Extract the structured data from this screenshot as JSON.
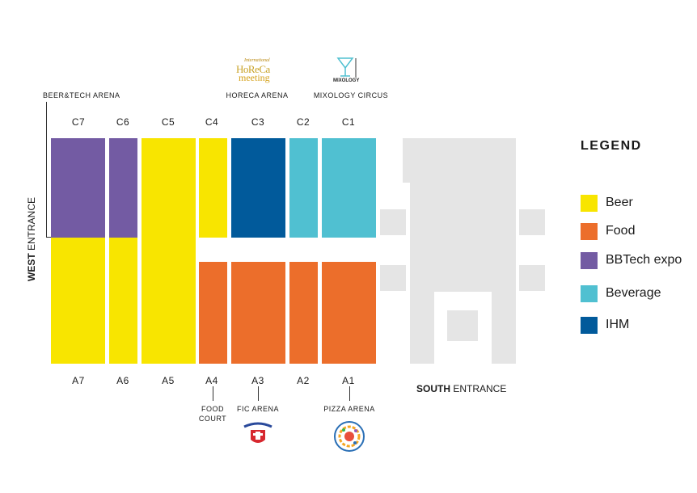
{
  "colors": {
    "beer": "#f8e500",
    "food": "#ec6e2b",
    "bbtech": "#735ba3",
    "beverage": "#50c0d1",
    "ihm": "#015a9b",
    "pavilion_grey": "#e5e5e5"
  },
  "halls_top": [
    "C7",
    "C6",
    "C5",
    "C4",
    "C3",
    "C2",
    "C1"
  ],
  "halls_bottom": [
    "A7",
    "A6",
    "A5",
    "A4",
    "A3",
    "A2",
    "A1"
  ],
  "arenas": {
    "beer_tech": "BEER&TECH ARENA",
    "horeca": "HORECA ARENA",
    "mixology": "MIXOLOGY CIRCUS",
    "food_court_line1": "FOOD",
    "food_court_line2": "COURT",
    "fic": "FIC ARENA",
    "pizza": "PIZZA ARENA"
  },
  "entrances": {
    "west_bold": "WEST",
    "west_rest": " ENTRANCE",
    "south_bold": "SOUTH",
    "south_rest": " ENTRANCE"
  },
  "logos": {
    "horeca_line1": "International",
    "horeca_line2": "HoReCa",
    "horeca_line3": "meeting",
    "mixology_text": "MIXOLOGY",
    "mixology_side": "CIRCUS"
  },
  "legend": {
    "title": "LEGEND",
    "items": [
      {
        "label": "Beer",
        "color": "#f8e500"
      },
      {
        "label": "Food",
        "color": "#ec6e2b"
      },
      {
        "label": "BBTech expo",
        "color": "#735ba3"
      },
      {
        "label": "Beverage",
        "color": "#50c0d1"
      },
      {
        "label": "IHM",
        "color": "#015a9b"
      }
    ]
  }
}
